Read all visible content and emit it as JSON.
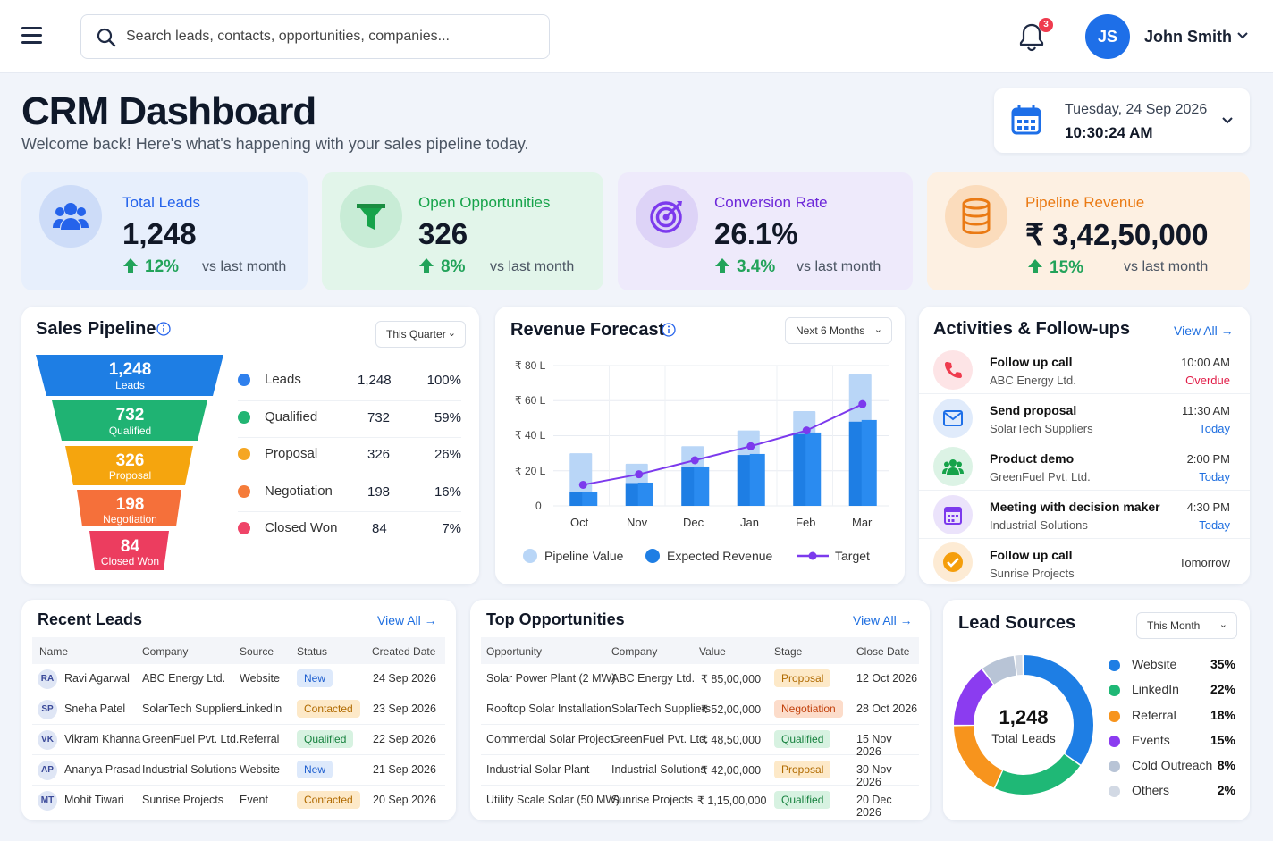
{
  "header": {
    "search_placeholder": "Search leads, contacts, opportunities, companies...",
    "notification_count": "3",
    "user_initials": "JS",
    "user_name": "John Smith"
  },
  "page": {
    "title": "CRM Dashboard",
    "subtitle": "Welcome back! Here's what's happening with your sales pipeline today.",
    "date": "Tuesday, 24 Sep 2026",
    "time": "10:30:24 AM"
  },
  "kpis": [
    {
      "label": "Total Leads",
      "value": "1,248",
      "change": "12%",
      "vs": "vs last month",
      "color": "#2563eb"
    },
    {
      "label": "Open Opportunities",
      "value": "326",
      "change": "8%",
      "vs": "vs last month",
      "color": "#16a34a"
    },
    {
      "label": "Conversion Rate",
      "value": "26.1%",
      "change": "3.4%",
      "vs": "vs last month",
      "color": "#7c3aed"
    },
    {
      "label": "Pipeline Revenue",
      "value": "₹ 3,42,50,000",
      "change": "15%",
      "vs": "vs last month",
      "color": "#ea7a14"
    }
  ],
  "pipeline": {
    "title": "Sales Pipeline",
    "period": "This Quarter",
    "stages": [
      {
        "name": "Leads",
        "value": "1,248",
        "pct": "100%",
        "color": "#2f80ed"
      },
      {
        "name": "Qualified",
        "value": "732",
        "pct": "59%",
        "color": "#22b573"
      },
      {
        "name": "Proposal",
        "value": "326",
        "pct": "26%",
        "color": "#f5a623"
      },
      {
        "name": "Negotiation",
        "value": "198",
        "pct": "16%",
        "color": "#f57c3a"
      },
      {
        "name": "Closed Won",
        "value": "84",
        "pct": "7%",
        "color": "#ef4468"
      }
    ]
  },
  "forecast": {
    "title": "Revenue Forecast",
    "period": "Next 6 Months",
    "y_ticks": [
      "₹ 80 L",
      "₹ 60 L",
      "₹ 40 L",
      "₹ 20 L",
      "0"
    ],
    "legend": [
      "Pipeline Value",
      "Expected Revenue",
      "Target"
    ]
  },
  "chart_data": {
    "type": "bar",
    "categories": [
      "Oct",
      "Nov",
      "Dec",
      "Jan",
      "Feb",
      "Mar"
    ],
    "series": [
      {
        "name": "Pipeline Value",
        "type": "bar",
        "values": [
          30,
          24,
          34,
          43,
          54,
          75
        ]
      },
      {
        "name": "Expected Revenue",
        "type": "bar",
        "values": [
          8,
          13,
          22,
          29,
          41,
          48
        ]
      },
      {
        "name": "Target",
        "type": "line",
        "values": [
          12,
          18,
          26,
          34,
          43,
          58
        ]
      }
    ],
    "ylim": [
      0,
      80
    ],
    "grid": true,
    "legend": "bottom",
    "colors": {
      "pipeline": "#b9d6f7",
      "expected": "#1e7ee4",
      "target": "#7c3aed"
    }
  },
  "activities": {
    "title": "Activities & Follow-ups",
    "view_all": "View All",
    "items": [
      {
        "title": "Follow up call",
        "company": "ABC Energy Ltd.",
        "time": "10:00 AM",
        "status": "Overdue",
        "icon": "phone-icon"
      },
      {
        "title": "Send proposal",
        "company": "SolarTech Suppliers",
        "time": "11:30 AM",
        "status": "Today",
        "icon": "mail-icon"
      },
      {
        "title": "Product demo",
        "company": "GreenFuel Pvt. Ltd.",
        "time": "2:00 PM",
        "status": "Today",
        "icon": "users-icon"
      },
      {
        "title": "Meeting with decision maker",
        "company": "Industrial Solutions",
        "time": "4:30 PM",
        "status": "Today",
        "icon": "calendar-icon"
      },
      {
        "title": "Follow up call",
        "company": "Sunrise Projects",
        "time": "",
        "status": "Tomorrow",
        "icon": "check-icon"
      }
    ]
  },
  "recent_leads": {
    "title": "Recent Leads",
    "view_all": "View All",
    "columns": [
      "Name",
      "Company",
      "Source",
      "Status",
      "Created Date"
    ],
    "rows": [
      {
        "initials": "RA",
        "name": "Ravi Agarwal",
        "company": "ABC Energy Ltd.",
        "source": "Website",
        "status": "New",
        "date": "24 Sep 2026"
      },
      {
        "initials": "SP",
        "name": "Sneha Patel",
        "company": "SolarTech Suppliers",
        "source": "LinkedIn",
        "status": "Contacted",
        "date": "23 Sep 2026"
      },
      {
        "initials": "VK",
        "name": "Vikram Khanna",
        "company": "GreenFuel Pvt. Ltd.",
        "source": "Referral",
        "status": "Qualified",
        "date": "22 Sep 2026"
      },
      {
        "initials": "AP",
        "name": "Ananya Prasad",
        "company": "Industrial Solutions",
        "source": "Website",
        "status": "New",
        "date": "21 Sep 2026"
      },
      {
        "initials": "MT",
        "name": "Mohit Tiwari",
        "company": "Sunrise Projects",
        "source": "Event",
        "status": "Contacted",
        "date": "20 Sep 2026"
      }
    ]
  },
  "top_opps": {
    "title": "Top Opportunities",
    "view_all": "View All",
    "columns": [
      "Opportunity",
      "Company",
      "Value",
      "Stage",
      "Close Date"
    ],
    "rows": [
      {
        "name": "Solar Power Plant (2 MW)",
        "company": "ABC Energy Ltd.",
        "value": "₹ 85,00,000",
        "stage": "Proposal",
        "date": "12 Oct 2026"
      },
      {
        "name": "Rooftop Solar Installation",
        "company": "SolarTech Suppliers",
        "value": "₹ 52,00,000",
        "stage": "Negotiation",
        "date": "28 Oct 2026"
      },
      {
        "name": "Commercial Solar Project",
        "company": "GreenFuel Pvt. Ltd.",
        "value": "₹ 48,50,000",
        "stage": "Qualified",
        "date": "15 Nov 2026"
      },
      {
        "name": "Industrial Solar Plant",
        "company": "Industrial Solutions",
        "value": "₹ 42,00,000",
        "stage": "Proposal",
        "date": "30 Nov 2026"
      },
      {
        "name": "Utility Scale Solar (50 MW)",
        "company": "Sunrise Projects",
        "value": "₹ 1,15,00,000",
        "stage": "Qualified",
        "date": "20 Dec 2026"
      }
    ]
  },
  "lead_sources": {
    "title": "Lead Sources",
    "period": "This Month",
    "center_value": "1,248",
    "center_label": "Total Leads",
    "items": [
      {
        "name": "Website",
        "pct": "35%",
        "value": 35,
        "color": "#1e7ee4"
      },
      {
        "name": "LinkedIn",
        "pct": "22%",
        "value": 22,
        "color": "#1fb876"
      },
      {
        "name": "Referral",
        "pct": "18%",
        "value": 18,
        "color": "#f7941d"
      },
      {
        "name": "Events",
        "pct": "15%",
        "value": 15,
        "color": "#8b3cf0"
      },
      {
        "name": "Cold Outreach",
        "pct": "8%",
        "value": 8,
        "color": "#b8c4d6"
      },
      {
        "name": "Others",
        "pct": "2%",
        "value": 2,
        "color": "#d2d9e4"
      }
    ]
  }
}
